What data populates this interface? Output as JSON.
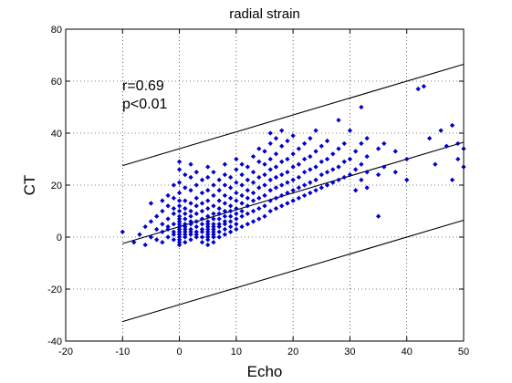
{
  "chart_data": {
    "type": "scatter",
    "title": "radial strain",
    "xlabel": "Echo",
    "ylabel": "CT",
    "xlim": [
      -20,
      50
    ],
    "ylim": [
      -40,
      80
    ],
    "x_ticks": [
      -20,
      -10,
      0,
      10,
      20,
      30,
      40,
      50
    ],
    "y_ticks": [
      -40,
      -20,
      0,
      20,
      40,
      60,
      80
    ],
    "grid": true,
    "grid_style": "dotted",
    "marker": "diamond",
    "point_color": "#0000cc",
    "line_color": "#000000",
    "annotations": [
      "r=0.69",
      "p<0.01"
    ],
    "regression_line": {
      "x": [
        -10,
        50
      ],
      "y": [
        -2.5,
        36.5
      ]
    },
    "upper_limit_line": {
      "x": [
        -10,
        50
      ],
      "y": [
        27.5,
        66.5
      ]
    },
    "lower_limit_line": {
      "x": [
        -10,
        50
      ],
      "y": [
        -32.5,
        6.5
      ]
    },
    "series": [
      {
        "values": [
          [
            -10,
            2
          ],
          [
            -8,
            -2
          ],
          [
            -7,
            1
          ],
          [
            -6,
            4
          ],
          [
            -6,
            -3
          ],
          [
            -5,
            6
          ],
          [
            -5,
            0
          ],
          [
            -5,
            13
          ],
          [
            -4,
            3
          ],
          [
            -4,
            8
          ],
          [
            -4,
            -1
          ],
          [
            -3,
            2
          ],
          [
            -3,
            5
          ],
          [
            -3,
            10
          ],
          [
            -3,
            14
          ],
          [
            -3,
            -2
          ],
          [
            -2,
            0
          ],
          [
            -2,
            4
          ],
          [
            -2,
            7
          ],
          [
            -2,
            12
          ],
          [
            -2,
            16
          ],
          [
            -2,
            3
          ],
          [
            -1,
            -1
          ],
          [
            -1,
            2
          ],
          [
            -1,
            5
          ],
          [
            -1,
            9
          ],
          [
            -1,
            11
          ],
          [
            -1,
            15
          ],
          [
            -1,
            20
          ],
          [
            -1,
            1
          ],
          [
            0,
            -3
          ],
          [
            0,
            -2
          ],
          [
            0,
            -1
          ],
          [
            0,
            0
          ],
          [
            0,
            1
          ],
          [
            0,
            1
          ],
          [
            0,
            2
          ],
          [
            0,
            2
          ],
          [
            0,
            3
          ],
          [
            0,
            3
          ],
          [
            0,
            4
          ],
          [
            0,
            5
          ],
          [
            0,
            6
          ],
          [
            0,
            7
          ],
          [
            0,
            8
          ],
          [
            0,
            10
          ],
          [
            0,
            12
          ],
          [
            0,
            14
          ],
          [
            0,
            17
          ],
          [
            0,
            21
          ],
          [
            0,
            26
          ],
          [
            0,
            29
          ],
          [
            1,
            -2
          ],
          [
            1,
            0
          ],
          [
            1,
            1
          ],
          [
            1,
            2
          ],
          [
            1,
            3
          ],
          [
            1,
            4
          ],
          [
            1,
            5
          ],
          [
            1,
            7
          ],
          [
            1,
            9
          ],
          [
            1,
            11
          ],
          [
            1,
            14
          ],
          [
            1,
            19
          ],
          [
            1,
            24
          ],
          [
            2,
            -1
          ],
          [
            2,
            1
          ],
          [
            2,
            2
          ],
          [
            2,
            3
          ],
          [
            2,
            5
          ],
          [
            2,
            6
          ],
          [
            2,
            8
          ],
          [
            2,
            10
          ],
          [
            2,
            13
          ],
          [
            2,
            18
          ],
          [
            2,
            23
          ],
          [
            2,
            28
          ],
          [
            3,
            0
          ],
          [
            3,
            1
          ],
          [
            3,
            2
          ],
          [
            3,
            4
          ],
          [
            3,
            6
          ],
          [
            3,
            9
          ],
          [
            3,
            12
          ],
          [
            3,
            15
          ],
          [
            3,
            20
          ],
          [
            3,
            25
          ],
          [
            4,
            -2
          ],
          [
            4,
            0
          ],
          [
            4,
            2
          ],
          [
            4,
            3
          ],
          [
            4,
            5
          ],
          [
            4,
            7
          ],
          [
            4,
            10
          ],
          [
            4,
            13
          ],
          [
            4,
            17
          ],
          [
            4,
            22
          ],
          [
            5,
            -3
          ],
          [
            5,
            -1
          ],
          [
            5,
            0
          ],
          [
            5,
            1
          ],
          [
            5,
            2
          ],
          [
            5,
            3
          ],
          [
            5,
            4
          ],
          [
            5,
            5
          ],
          [
            5,
            6
          ],
          [
            5,
            8
          ],
          [
            5,
            11
          ],
          [
            5,
            14
          ],
          [
            5,
            18
          ],
          [
            5,
            23
          ],
          [
            5,
            27
          ],
          [
            6,
            -2
          ],
          [
            6,
            0
          ],
          [
            6,
            1
          ],
          [
            6,
            2
          ],
          [
            6,
            3
          ],
          [
            6,
            4
          ],
          [
            6,
            5
          ],
          [
            6,
            7
          ],
          [
            6,
            9
          ],
          [
            6,
            12
          ],
          [
            6,
            16
          ],
          [
            6,
            20
          ],
          [
            6,
            25
          ],
          [
            7,
            0
          ],
          [
            7,
            2
          ],
          [
            7,
            4
          ],
          [
            7,
            5
          ],
          [
            7,
            7
          ],
          [
            7,
            9
          ],
          [
            7,
            11
          ],
          [
            7,
            14
          ],
          [
            7,
            18
          ],
          [
            7,
            22
          ],
          [
            8,
            1
          ],
          [
            8,
            3
          ],
          [
            8,
            5
          ],
          [
            8,
            6
          ],
          [
            8,
            8
          ],
          [
            8,
            10
          ],
          [
            8,
            13
          ],
          [
            8,
            16
          ],
          [
            8,
            20
          ],
          [
            8,
            24
          ],
          [
            8,
            28
          ],
          [
            9,
            2
          ],
          [
            9,
            4
          ],
          [
            9,
            6
          ],
          [
            9,
            8
          ],
          [
            9,
            10
          ],
          [
            9,
            12
          ],
          [
            9,
            15
          ],
          [
            9,
            19
          ],
          [
            9,
            23
          ],
          [
            10,
            3
          ],
          [
            10,
            5
          ],
          [
            10,
            7
          ],
          [
            10,
            9
          ],
          [
            10,
            11
          ],
          [
            10,
            14
          ],
          [
            10,
            17
          ],
          [
            10,
            21
          ],
          [
            10,
            26
          ],
          [
            10,
            30
          ],
          [
            11,
            4
          ],
          [
            11,
            8
          ],
          [
            11,
            10
          ],
          [
            11,
            13
          ],
          [
            11,
            16
          ],
          [
            11,
            20
          ],
          [
            11,
            24
          ],
          [
            11,
            28
          ],
          [
            12,
            5
          ],
          [
            12,
            9
          ],
          [
            12,
            12
          ],
          [
            12,
            15
          ],
          [
            12,
            18
          ],
          [
            12,
            22
          ],
          [
            12,
            27
          ],
          [
            13,
            6
          ],
          [
            13,
            10
          ],
          [
            13,
            14
          ],
          [
            13,
            17
          ],
          [
            13,
            21
          ],
          [
            13,
            25
          ],
          [
            13,
            31
          ],
          [
            14,
            7
          ],
          [
            14,
            11
          ],
          [
            14,
            15
          ],
          [
            14,
            19
          ],
          [
            14,
            23
          ],
          [
            14,
            29
          ],
          [
            14,
            34
          ],
          [
            15,
            8
          ],
          [
            15,
            12
          ],
          [
            15,
            16
          ],
          [
            15,
            20
          ],
          [
            15,
            24
          ],
          [
            15,
            28
          ],
          [
            15,
            33
          ],
          [
            16,
            10
          ],
          [
            16,
            14
          ],
          [
            16,
            18
          ],
          [
            16,
            22
          ],
          [
            16,
            26
          ],
          [
            16,
            30
          ],
          [
            16,
            36
          ],
          [
            16,
            40
          ],
          [
            17,
            11
          ],
          [
            17,
            15
          ],
          [
            17,
            19
          ],
          [
            17,
            23
          ],
          [
            17,
            27
          ],
          [
            17,
            32
          ],
          [
            17,
            38
          ],
          [
            18,
            12
          ],
          [
            18,
            16
          ],
          [
            18,
            20
          ],
          [
            18,
            24
          ],
          [
            18,
            29
          ],
          [
            18,
            35
          ],
          [
            18,
            41
          ],
          [
            19,
            13
          ],
          [
            19,
            17
          ],
          [
            19,
            21
          ],
          [
            19,
            25
          ],
          [
            19,
            30
          ],
          [
            19,
            37
          ],
          [
            20,
            14
          ],
          [
            20,
            18
          ],
          [
            20,
            22
          ],
          [
            20,
            27
          ],
          [
            20,
            32
          ],
          [
            20,
            39
          ],
          [
            21,
            15
          ],
          [
            21,
            19
          ],
          [
            21,
            23
          ],
          [
            21,
            28
          ],
          [
            21,
            34
          ],
          [
            22,
            16
          ],
          [
            22,
            20
          ],
          [
            22,
            25
          ],
          [
            22,
            30
          ],
          [
            22,
            36
          ],
          [
            23,
            17
          ],
          [
            23,
            21
          ],
          [
            23,
            26
          ],
          [
            23,
            31
          ],
          [
            23,
            38
          ],
          [
            24,
            18
          ],
          [
            24,
            22
          ],
          [
            24,
            27
          ],
          [
            24,
            33
          ],
          [
            24,
            41
          ],
          [
            25,
            19
          ],
          [
            25,
            24
          ],
          [
            25,
            29
          ],
          [
            25,
            35
          ],
          [
            26,
            20
          ],
          [
            26,
            25
          ],
          [
            26,
            30
          ],
          [
            26,
            37
          ],
          [
            27,
            21
          ],
          [
            27,
            26
          ],
          [
            27,
            32
          ],
          [
            28,
            22
          ],
          [
            28,
            27
          ],
          [
            28,
            34
          ],
          [
            28,
            45
          ],
          [
            29,
            23
          ],
          [
            29,
            29
          ],
          [
            29,
            36
          ],
          [
            30,
            24
          ],
          [
            30,
            30
          ],
          [
            30,
            41
          ],
          [
            31,
            18
          ],
          [
            31,
            26
          ],
          [
            31,
            33
          ],
          [
            32,
            22
          ],
          [
            32,
            28
          ],
          [
            32,
            36
          ],
          [
            32,
            50
          ],
          [
            33,
            19
          ],
          [
            33,
            25
          ],
          [
            33,
            31
          ],
          [
            33,
            38
          ],
          [
            35,
            8
          ],
          [
            35,
            24
          ],
          [
            35,
            34
          ],
          [
            36,
            27
          ],
          [
            36,
            36
          ],
          [
            38,
            25
          ],
          [
            38,
            33
          ],
          [
            40,
            22
          ],
          [
            40,
            30
          ],
          [
            42,
            57
          ],
          [
            43,
            58
          ],
          [
            44,
            38
          ],
          [
            45,
            28
          ],
          [
            46,
            41
          ],
          [
            47,
            35
          ],
          [
            48,
            22
          ],
          [
            48,
            43
          ],
          [
            49,
            30
          ],
          [
            49,
            36
          ],
          [
            50,
            27
          ],
          [
            50,
            34
          ]
        ]
      }
    ]
  }
}
